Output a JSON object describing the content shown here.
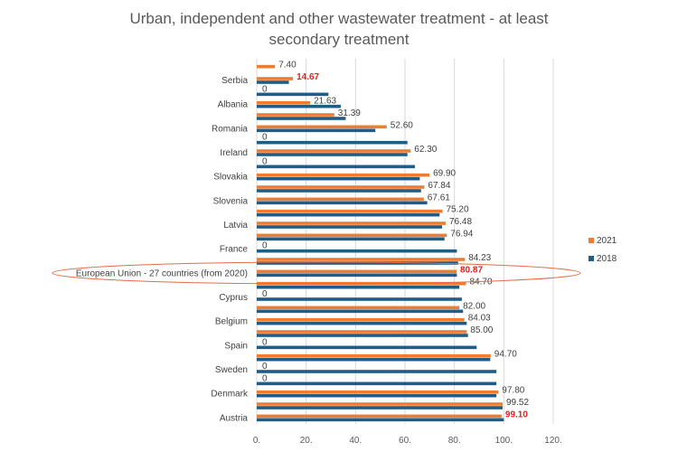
{
  "chart_data": {
    "type": "bar",
    "orientation": "horizontal",
    "title_lines": [
      "Urban, independent and other wastewater treatment - at least",
      "secondary treatment"
    ],
    "xlim": [
      0,
      120
    ],
    "x_tick_labels": [
      "0.",
      "20.",
      "40.",
      "60.",
      "80.",
      "100.",
      "120."
    ],
    "grid": true,
    "legend_position": "right",
    "colors": {
      "2021": "#ed7d31",
      "2018": "#1f5c86",
      "highlight_text": "#e0211d",
      "ellipse": "#e36c4b"
    },
    "category_labels": [
      "Serbia",
      "Albania",
      "Romania",
      "Ireland",
      "Slovakia",
      "Slovenia",
      "Latvia",
      "France",
      "European Union - 27 countries (from 2020)",
      "Cyprus",
      "Belgium",
      "Spain",
      "Sweden",
      "Denmark",
      "Austria"
    ],
    "rows": [
      {
        "v2021": 7.4,
        "label2021": "7.40",
        "v2018": null,
        "highlight": false
      },
      {
        "v2021": 14.67,
        "label2021": "14.67",
        "v2018": 13.0,
        "highlight": true
      },
      {
        "v2021": 0,
        "label2021": "0",
        "v2018": 29.0,
        "highlight": false
      },
      {
        "v2021": 21.63,
        "label2021": "21.63",
        "v2018": 34.0,
        "highlight": false
      },
      {
        "v2021": 31.39,
        "label2021": "31.39",
        "v2018": 36.0,
        "highlight": false
      },
      {
        "v2021": 52.6,
        "label2021": "52.60",
        "v2018": 48.0,
        "highlight": false
      },
      {
        "v2021": 0,
        "label2021": "0",
        "v2018": 61.0,
        "highlight": false
      },
      {
        "v2021": 62.3,
        "label2021": "62.30",
        "v2018": 61.0,
        "highlight": false
      },
      {
        "v2021": 0,
        "label2021": "0",
        "v2018": 64.0,
        "highlight": false
      },
      {
        "v2021": 69.9,
        "label2021": "69.90",
        "v2018": 66.0,
        "highlight": false
      },
      {
        "v2021": 67.84,
        "label2021": "67.84",
        "v2018": 66.5,
        "highlight": false
      },
      {
        "v2021": 67.61,
        "label2021": "67.61",
        "v2018": 69.0,
        "highlight": false
      },
      {
        "v2021": 75.2,
        "label2021": "75.20",
        "v2018": 74.0,
        "highlight": false
      },
      {
        "v2021": 76.48,
        "label2021": "76.48",
        "v2018": 75.0,
        "highlight": false
      },
      {
        "v2021": 76.94,
        "label2021": "76.94",
        "v2018": 76.0,
        "highlight": false
      },
      {
        "v2021": 0,
        "label2021": "0",
        "v2018": 81.0,
        "highlight": false
      },
      {
        "v2021": 84.23,
        "label2021": "84.23",
        "v2018": 81.5,
        "highlight": false
      },
      {
        "v2021": 80.87,
        "label2021": "80.87",
        "v2018": 81.0,
        "highlight": true
      },
      {
        "v2021": 84.7,
        "label2021": "84.70",
        "v2018": 82.0,
        "highlight": false
      },
      {
        "v2021": 0,
        "label2021": "0",
        "v2018": 83.0,
        "highlight": false
      },
      {
        "v2021": 82.0,
        "label2021": "82.00",
        "v2018": 83.5,
        "highlight": false
      },
      {
        "v2021": 84.03,
        "label2021": "84.03",
        "v2018": 85.0,
        "highlight": false
      },
      {
        "v2021": 85.0,
        "label2021": "85.00",
        "v2018": 85.5,
        "highlight": false
      },
      {
        "v2021": 0,
        "label2021": "0",
        "v2018": 89.0,
        "highlight": false
      },
      {
        "v2021": 94.7,
        "label2021": "94.70",
        "v2018": 94.5,
        "highlight": false
      },
      {
        "v2021": 0,
        "label2021": "0",
        "v2018": 97.0,
        "highlight": false
      },
      {
        "v2021": 0,
        "label2021": "0",
        "v2018": 97.0,
        "highlight": false
      },
      {
        "v2021": 97.8,
        "label2021": "97.80",
        "v2018": 97.0,
        "highlight": false
      },
      {
        "v2021": 99.52,
        "label2021": "99.52",
        "v2018": 99.5,
        "highlight": false
      },
      {
        "v2021": 99.1,
        "label2021": "99.10",
        "v2018": 100.0,
        "highlight": true
      }
    ],
    "legend": [
      {
        "series": "2021",
        "label": "2021"
      },
      {
        "series": "2018",
        "label": "2018"
      }
    ]
  }
}
